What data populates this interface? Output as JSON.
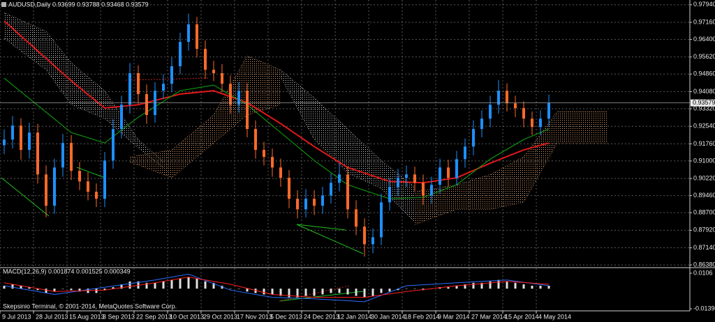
{
  "chart_data": [
    {
      "type": "candlestick",
      "title": "AUDUSD,Daily  0.93699 0.93788 0.93468 0.93579",
      "xlim": [
        -0.5,
        81.83
      ],
      "ylim": [
        0.8629,
        0.9809
      ],
      "grid": true,
      "up_color": "#1e90ff",
      "down_color": "#ff6a2a",
      "yticks": [
        {
          "value": 0.9794,
          "label": "0.97940"
        },
        {
          "value": 0.9716,
          "label": "0.97160"
        },
        {
          "value": 0.964,
          "label": "0.96400"
        },
        {
          "value": 0.9562,
          "label": "0.95620"
        },
        {
          "value": 0.9486,
          "label": "0.94860"
        },
        {
          "value": 0.9408,
          "label": "0.94080"
        },
        {
          "value": 0.9332,
          "label": "0.93320"
        },
        {
          "value": 0.9254,
          "label": "0.92540"
        },
        {
          "value": 0.9176,
          "label": "0.91760"
        },
        {
          "value": 0.91,
          "label": "0.91000"
        },
        {
          "value": 0.9022,
          "label": "0.90220"
        },
        {
          "value": 0.8946,
          "label": "0.89460"
        },
        {
          "value": 0.887,
          "label": "0.88700"
        },
        {
          "value": 0.8792,
          "label": "0.87920"
        },
        {
          "value": 0.8714,
          "label": "0.87140"
        },
        {
          "value": 0.8638,
          "label": "0.86380"
        }
      ],
      "xticks": [
        {
          "value": -0.5,
          "label": "9 Jul 2013"
        },
        {
          "value": 3.5,
          "label": "28 Jul 2013"
        },
        {
          "value": 7.5,
          "label": "15 Aug 2013"
        },
        {
          "value": 11.5,
          "label": "3 Sep 2013"
        },
        {
          "value": 15.5,
          "label": "22 Sep 2013"
        },
        {
          "value": 19.5,
          "label": "10 Oct 2013"
        },
        {
          "value": 23.5,
          "label": "29 Oct 2013"
        },
        {
          "value": 27.5,
          "label": "17 Nov 2013"
        },
        {
          "value": 31.5,
          "label": "5 Dec 2013"
        },
        {
          "value": 35.5,
          "label": "24 Dec 2013"
        },
        {
          "value": 39.5,
          "label": "12 Jan 2014"
        },
        {
          "value": 43.5,
          "label": "30 Jan 2014"
        },
        {
          "value": 47.5,
          "label": "18 Feb 2014"
        },
        {
          "value": 51.5,
          "label": "9 Mar 2014"
        },
        {
          "value": 55.5,
          "label": "27 Mar 2014"
        },
        {
          "value": 59.5,
          "label": "15 Apr 2014"
        },
        {
          "value": 63.5,
          "label": "4 May 2014"
        }
      ],
      "open": [
        0.917,
        0.9195,
        0.9257,
        0.9149,
        0.9226,
        0.904,
        0.8901,
        0.9071,
        0.918,
        0.9056,
        0.9009,
        0.8963,
        0.8932,
        0.9102,
        0.9242,
        0.935,
        0.949,
        0.9397,
        0.9304,
        0.9412,
        0.9443,
        0.9521,
        0.9629,
        0.9707,
        0.9598,
        0.9505,
        0.949,
        0.9443,
        0.935,
        0.9412,
        0.9242,
        0.9149,
        0.9118,
        0.9071,
        0.9025,
        0.8932,
        0.8885,
        0.8932,
        0.8901,
        0.8947,
        0.9003,
        0.904,
        0.8885,
        0.8808,
        0.873,
        0.8761,
        0.8916,
        0.8984,
        0.9025,
        0.904,
        0.9003,
        0.8947,
        0.8994,
        0.9071,
        0.9025,
        0.9108,
        0.9164,
        0.9242,
        0.9288,
        0.935,
        0.9412,
        0.9356,
        0.9335,
        0.9288,
        0.9251,
        0.9288
      ],
      "high": [
        0.924,
        0.93,
        0.929,
        0.927,
        0.9265,
        0.908,
        0.911,
        0.922,
        0.9215,
        0.9095,
        0.905,
        0.9,
        0.914,
        0.9285,
        0.939,
        0.9535,
        0.9525,
        0.944,
        0.945,
        0.9485,
        0.956,
        0.967,
        0.9755,
        0.974,
        0.9635,
        0.9545,
        0.953,
        0.948,
        0.945,
        0.9445,
        0.928,
        0.9185,
        0.9155,
        0.911,
        0.906,
        0.897,
        0.8975,
        0.897,
        0.8985,
        0.9045,
        0.909,
        0.9075,
        0.8925,
        0.8845,
        0.88,
        0.8955,
        0.9025,
        0.9065,
        0.908,
        0.9075,
        0.904,
        0.903,
        0.911,
        0.9105,
        0.9145,
        0.92,
        0.928,
        0.9325,
        0.939,
        0.946,
        0.9445,
        0.939,
        0.9365,
        0.932,
        0.9325,
        0.9395
      ],
      "low": [
        0.913,
        0.9155,
        0.9105,
        0.911,
        0.9,
        0.885,
        0.8865,
        0.903,
        0.9015,
        0.897,
        0.8925,
        0.8895,
        0.8895,
        0.9065,
        0.92,
        0.931,
        0.9355,
        0.9265,
        0.927,
        0.9375,
        0.9405,
        0.9485,
        0.959,
        0.956,
        0.9465,
        0.9455,
        0.9405,
        0.931,
        0.9315,
        0.9205,
        0.911,
        0.908,
        0.903,
        0.8985,
        0.889,
        0.8845,
        0.885,
        0.886,
        0.8865,
        0.891,
        0.8965,
        0.8845,
        0.877,
        0.8675,
        0.869,
        0.8725,
        0.888,
        0.8945,
        0.8985,
        0.8965,
        0.8905,
        0.891,
        0.8955,
        0.8985,
        0.899,
        0.907,
        0.9125,
        0.9205,
        0.925,
        0.931,
        0.932,
        0.9295,
        0.925,
        0.9215,
        0.9215,
        0.9255
      ],
      "close": [
        0.9195,
        0.9257,
        0.9149,
        0.9226,
        0.904,
        0.8901,
        0.9071,
        0.918,
        0.9056,
        0.9009,
        0.8963,
        0.8932,
        0.9102,
        0.9242,
        0.935,
        0.949,
        0.9397,
        0.9304,
        0.9412,
        0.9443,
        0.9521,
        0.9629,
        0.9707,
        0.9598,
        0.9505,
        0.949,
        0.9443,
        0.935,
        0.9412,
        0.9242,
        0.9149,
        0.9118,
        0.9071,
        0.9025,
        0.8932,
        0.8885,
        0.8932,
        0.8901,
        0.8947,
        0.9003,
        0.904,
        0.8885,
        0.8808,
        0.873,
        0.8761,
        0.8916,
        0.8984,
        0.9025,
        0.904,
        0.9003,
        0.8947,
        0.8994,
        0.9071,
        0.9025,
        0.9108,
        0.9164,
        0.9242,
        0.9288,
        0.935,
        0.9412,
        0.9356,
        0.9335,
        0.9288,
        0.9251,
        0.9288,
        0.93579
      ],
      "overlays": [
        {
          "color": "#e01818",
          "x": [
            0,
            8,
            12,
            16,
            21,
            25,
            29,
            33,
            37,
            41,
            46,
            50,
            54,
            58,
            62,
            65
          ],
          "values": [
            0.9722,
            0.9456,
            0.9335,
            0.935,
            0.9397,
            0.9412,
            0.9359,
            0.9266,
            0.9164,
            0.9071,
            0.9009,
            0.9003,
            0.9025,
            0.909,
            0.9149,
            0.918
          ]
        },
        {
          "color": "#109010",
          "x": [
            0,
            8,
            12,
            16,
            21,
            25,
            29,
            33,
            37,
            41,
            46,
            50,
            54,
            58,
            62,
            65
          ],
          "values": [
            0.9468,
            0.9226,
            0.918,
            0.9294,
            0.9412,
            0.9437,
            0.935,
            0.9226,
            0.9102,
            0.8994,
            0.8932,
            0.8938,
            0.8994,
            0.9108,
            0.9195,
            0.9242
          ]
        }
      ],
      "clouds": [
        {
          "color": "#c8c8c8",
          "x": [
            0,
            5,
            8,
            12,
            16,
            19
          ],
          "upper": [
            0.9759,
            0.9676,
            0.9536,
            0.9412,
            0.9195,
            0.9096
          ],
          "lower": [
            0.9645,
            0.9505,
            0.935,
            0.9288,
            0.9158,
            0.9071
          ]
        },
        {
          "color": "#e0a070",
          "x": [
            15,
            20,
            25,
            29,
            33
          ],
          "upper": [
            0.9118,
            0.9149,
            0.9304,
            0.9567,
            0.9505
          ],
          "lower": [
            0.9096,
            0.9025,
            0.918,
            0.9304,
            0.935
          ]
        },
        {
          "color": "#c8c8c8",
          "x": [
            33,
            37,
            41,
            45,
            49
          ],
          "upper": [
            0.9505,
            0.9381,
            0.9242,
            0.9102,
            0.8984
          ],
          "lower": [
            0.9474,
            0.9195,
            0.9046,
            0.8978,
            0.8829
          ]
        },
        {
          "color": "#e0a070",
          "x": [
            49,
            54,
            58,
            62,
            66,
            72
          ],
          "upper": [
            0.8963,
            0.8994,
            0.904,
            0.9118,
            0.9319,
            0.9319
          ],
          "lower": [
            0.8817,
            0.8885,
            0.8885,
            0.8916,
            0.918,
            0.918
          ]
        }
      ],
      "last_price": 0.93579
    },
    {
      "type": "macd",
      "title": "MACD(12,26,9) 0.001874 0.001525 0.000349",
      "xlim": [
        -0.5,
        81.83
      ],
      "ylim": [
        -0.0153,
        0.014
      ],
      "yticks": [
        0.0106,
        {
          "value": -0.0139,
          "label": "-0.01390"
        }
      ],
      "color": "#e0e0e0",
      "values": [
        0.002,
        0.003,
        0.002,
        0.001,
        -0.001,
        -0.003,
        -0.002,
        0,
        -0.001,
        -0.002,
        -0.003,
        -0.003,
        -0.001,
        0.001,
        0.003,
        0.005,
        0.005,
        0.004,
        0.004,
        0.005,
        0.006,
        0.007,
        0.008,
        0.007,
        0.005,
        0.004,
        0.002,
        0,
        0,
        -0.002,
        -0.003,
        -0.004,
        -0.004,
        -0.005,
        -0.006,
        -0.006,
        -0.005,
        -0.005,
        -0.004,
        -0.003,
        -0.003,
        -0.004,
        -0.005,
        -0.006,
        -0.005,
        -0.003,
        -0.002,
        -0.001,
        0,
        0,
        -0.001,
        0,
        0.001,
        0.001,
        0.002,
        0.003,
        0.004,
        0.004,
        0.005,
        0.006,
        0.005,
        0.004,
        0.003,
        0.002,
        0.002,
        0.002
      ],
      "series": [
        {
          "color": "#2a6fff",
          "x": [
            0,
            6,
            12,
            18,
            22,
            27,
            32,
            37,
            43,
            48,
            54,
            60,
            65
          ],
          "values": [
            0.002,
            -0.004,
            0.001,
            0.006,
            0.01,
            -0.001,
            -0.006,
            -0.007,
            -0.009,
            0.002,
            0.004,
            0.006,
            0.002
          ]
        },
        {
          "color": "#ff2020",
          "x": [
            0,
            6,
            12,
            18,
            22,
            27,
            32,
            37,
            43,
            48,
            54,
            60,
            65
          ],
          "values": [
            0.004,
            -0.002,
            -0.001,
            0.004,
            0.008,
            0.003,
            -0.004,
            -0.006,
            -0.006,
            -0.002,
            0.002,
            0.005,
            0.003
          ]
        }
      ]
    }
  ],
  "footer": "Skepsinio Terminal, © 2001-2014, MetaQuotes Software Corp."
}
